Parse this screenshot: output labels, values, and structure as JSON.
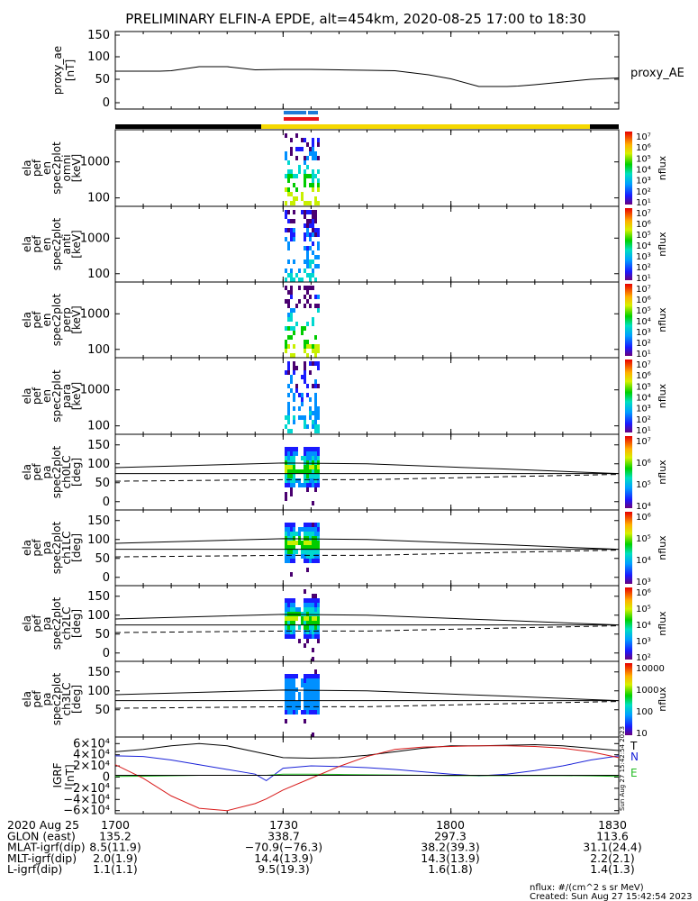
{
  "title": "PRELIMINARY ELFIN-A EPDE, alt=454km, 2020-08-25 17:00 to 18:30",
  "colors": {
    "black": "#000000",
    "yellow": "#f5d800",
    "red": "#e8141c",
    "blue": "#1e7bd8",
    "grf_T": "#000000",
    "grf_N": "#1a22d8",
    "grf_E": "#22bb22",
    "grf_red": "#d81a1a"
  },
  "chart_data": [
    {
      "type": "line",
      "id": "proxy_ae",
      "ylabel_lines": [
        "proxy_ae",
        "[nT]"
      ],
      "legend": "proxy_AE",
      "yticks": [
        "150",
        "100",
        "50",
        "0"
      ],
      "ylim": [
        0,
        150
      ],
      "x_minutes": [
        0,
        5,
        8,
        10,
        15,
        20,
        25,
        30,
        35,
        40,
        45,
        50,
        52,
        56,
        60,
        65,
        70,
        72,
        75,
        80,
        85,
        90
      ],
      "values": [
        70,
        70,
        70,
        71,
        80,
        80,
        73,
        74,
        74,
        73,
        72,
        71,
        68,
        62,
        53,
        36,
        36,
        37,
        40,
        46,
        52,
        55
      ]
    },
    {
      "type": "heatmap",
      "id": "omni",
      "ylabel_lines": [
        "ela",
        "pef",
        "en",
        "spec2plot",
        "omni",
        "[keV]"
      ],
      "yticks": [
        "1000",
        "100"
      ],
      "colorbar": {
        "label": "nflux",
        "ticks": [
          "10⁷",
          "10⁶",
          "10⁵",
          "10⁴",
          "10³",
          "10²",
          "10¹"
        ]
      }
    },
    {
      "type": "heatmap",
      "id": "anti",
      "ylabel_lines": [
        "ela",
        "pef",
        "en",
        "spec2plot",
        "anti",
        "[keV]"
      ],
      "yticks": [
        "1000",
        "100"
      ],
      "colorbar": {
        "label": "nflux",
        "ticks": [
          "10⁷",
          "10⁶",
          "10⁵",
          "10⁴",
          "10³",
          "10²",
          "10¹"
        ]
      }
    },
    {
      "type": "heatmap",
      "id": "perp",
      "ylabel_lines": [
        "ela",
        "pef",
        "en",
        "spec2plot",
        "perp",
        "[keV]"
      ],
      "yticks": [
        "1000",
        "100"
      ],
      "colorbar": {
        "label": "nflux",
        "ticks": [
          "10⁷",
          "10⁶",
          "10⁵",
          "10⁴",
          "10³",
          "10²",
          "10¹"
        ]
      }
    },
    {
      "type": "heatmap",
      "id": "para",
      "ylabel_lines": [
        "ela",
        "pef",
        "en",
        "spec2plot",
        "para",
        "[keV]"
      ],
      "yticks": [
        "1000",
        "100"
      ],
      "colorbar": {
        "label": "nflux",
        "ticks": [
          "10⁷",
          "10⁶",
          "10⁵",
          "10⁴",
          "10³",
          "10²",
          "10¹"
        ]
      }
    },
    {
      "type": "heatmap",
      "id": "ch0lc",
      "ylabel_lines": [
        "ela",
        "pef",
        "pa",
        "spec2plot",
        "ch0LC",
        "[deg]"
      ],
      "yticks": [
        "150",
        "100",
        "50",
        "0"
      ],
      "colorbar": {
        "label": "nflux",
        "ticks": [
          "10⁷",
          "10⁶",
          "10⁵",
          "10⁴"
        ]
      }
    },
    {
      "type": "heatmap",
      "id": "ch1lc",
      "ylabel_lines": [
        "ela",
        "pef",
        "pa",
        "spec2plot",
        "ch1LC",
        "[deg]"
      ],
      "yticks": [
        "150",
        "100",
        "50",
        "0"
      ],
      "colorbar": {
        "label": "nflux",
        "ticks": [
          "10⁶",
          "10⁵",
          "10⁴",
          "10³"
        ]
      }
    },
    {
      "type": "heatmap",
      "id": "ch2lc",
      "ylabel_lines": [
        "ela",
        "pef",
        "pa",
        "spec2plot",
        "ch2LC",
        "[deg]"
      ],
      "yticks": [
        "150",
        "100",
        "50",
        "0"
      ],
      "colorbar": {
        "label": "nflux",
        "ticks": [
          "10⁶",
          "10⁵",
          "10⁴",
          "10³",
          "10²"
        ]
      }
    },
    {
      "type": "heatmap",
      "id": "ch3lc",
      "ylabel_lines": [
        "ela",
        "pef",
        "pa",
        "spec2plot",
        "ch3LC",
        "[deg]"
      ],
      "yticks": [
        "150",
        "100",
        "50"
      ],
      "colorbar": {
        "label": "nflux",
        "ticks": [
          "10000",
          "1000",
          "100",
          "10"
        ]
      }
    },
    {
      "type": "line",
      "id": "igrf",
      "ylabel_lines": [
        "IGRF",
        "[nT]"
      ],
      "yticks": [
        "6×10⁴",
        "4×10⁴",
        "2×10⁴",
        "0",
        "−2×10⁴",
        "−4×10⁴",
        "−6×10⁴"
      ],
      "ylim": [
        -65000,
        65000
      ],
      "legend": [
        "T",
        "N",
        "E"
      ],
      "x_minutes": [
        0,
        5,
        10,
        15,
        20,
        25,
        27,
        30,
        35,
        40,
        45,
        50,
        55,
        60,
        65,
        70,
        75,
        80,
        85,
        90
      ],
      "series": [
        {
          "name": "T",
          "values": [
            40000,
            44000,
            50000,
            54000,
            50000,
            40000,
            36000,
            30000,
            29000,
            30000,
            34000,
            40000,
            46000,
            50000,
            50000,
            51000,
            52000,
            50000,
            46000,
            42000
          ]
        },
        {
          "name": "N",
          "values": [
            33000,
            32000,
            26000,
            18000,
            10000,
            2000,
            -9000,
            12000,
            16000,
            15000,
            13000,
            10000,
            6000,
            2000,
            -1000,
            2000,
            8000,
            16000,
            26000,
            33000
          ]
        },
        {
          "name": "E",
          "values": [
            -2000,
            -1500,
            -800,
            0,
            0,
            0,
            0,
            2000,
            2000,
            1500,
            1000,
            500,
            0,
            -500,
            -500,
            -500,
            -500,
            -500,
            -1000,
            -2000
          ]
        },
        {
          "name": "",
          "values": [
            18000,
            -5000,
            -35000,
            -56000,
            -60000,
            -48000,
            -40000,
            -25000,
            -5000,
            15000,
            32000,
            44000,
            48000,
            49000,
            50000,
            50000,
            49000,
            46000,
            40000,
            30000
          ]
        }
      ]
    }
  ],
  "xaxis": {
    "ticks": [
      "1700",
      "1730",
      "1800",
      "1830"
    ],
    "rows": [
      {
        "label": "2020 Aug 25",
        "values": [
          "1700",
          "1730",
          "1800",
          "1830"
        ]
      },
      {
        "label": "GLON (east)",
        "values": [
          "135.2",
          "338.7",
          "297.3",
          "113.6"
        ]
      },
      {
        "label": "MLAT-igrf(dip)",
        "values": [
          "8.5(11.9)",
          "−70.9(−76.3)",
          "38.2(39.3)",
          "31.1(24.4)"
        ]
      },
      {
        "label": "MLT-igrf(dip)",
        "values": [
          "2.0(1.9)",
          "14.4(13.9)",
          "14.3(13.9)",
          "2.2(2.1)"
        ]
      },
      {
        "label": "L-igrf(dip)",
        "values": [
          "1.1(1.1)",
          "9.5(19.3)",
          "1.6(1.8)",
          "1.4(1.3)"
        ]
      }
    ]
  },
  "side_stamp": "Sun Aug 27 15:42:54 2023",
  "footer": {
    "units": "nflux: #/(cm^2 s sr MeV)",
    "created": "Created: Sun Aug 27 15:42:54 2023"
  }
}
